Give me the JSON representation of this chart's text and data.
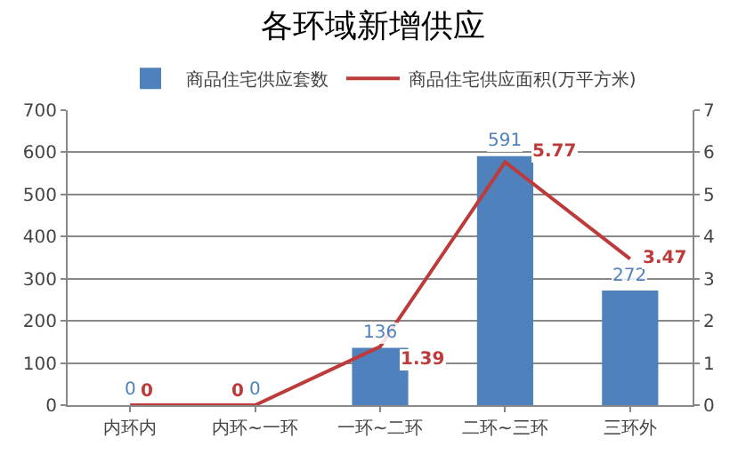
{
  "chart_data": {
    "type": "bar",
    "title": "各环域新增供应",
    "categories": [
      "内环内",
      "内环~一环",
      "一环~二环",
      "二环~三环",
      "三环外"
    ],
    "series": [
      {
        "name": "商品住宅供应套数",
        "color": "#4f81bd",
        "values": [
          0,
          0,
          136,
          591,
          272
        ]
      },
      {
        "name": "商品住宅供应面积(万平方米)",
        "type": "line",
        "axis": "y2",
        "color": "#be3b3b",
        "values": [
          0,
          0,
          1.39,
          5.77,
          3.47
        ]
      }
    ],
    "ylim": [
      0,
      700
    ],
    "yticks": [
      0,
      100,
      200,
      300,
      400,
      500,
      600,
      700
    ],
    "y2lim": [
      0,
      7
    ],
    "y2ticks": [
      0,
      1,
      2,
      3,
      4,
      5,
      6,
      7
    ],
    "grid": "y",
    "legend": "top",
    "data_labels": true,
    "marker": "none",
    "line_style": "solid"
  }
}
